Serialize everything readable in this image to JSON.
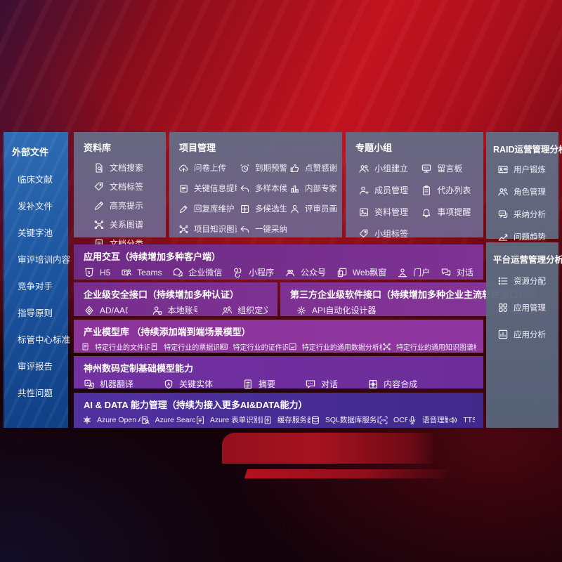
{
  "sidebar": {
    "title": "外部文件",
    "items": [
      "临床文献",
      "发补文件",
      "关键字池",
      "审评培训内容",
      "竞争对手",
      "指导原则",
      "标管中心标准",
      "审评报告",
      "共性问题"
    ]
  },
  "panels": {
    "library": {
      "title": "资料库",
      "items": [
        {
          "icon": "doc-search",
          "label": "文档搜索"
        },
        {
          "icon": "tag",
          "label": "文档标签"
        },
        {
          "icon": "highlight-pen",
          "label": "高亮提示"
        },
        {
          "icon": "graph",
          "label": "关系图谱"
        },
        {
          "icon": "doc",
          "label": "文档分类"
        }
      ]
    },
    "project": {
      "title": "项目管理",
      "items": [
        {
          "icon": "cloud-upload",
          "label": "问卷上传"
        },
        {
          "icon": "alarm",
          "label": "到期预警"
        },
        {
          "icon": "thumbs-up",
          "label": "点赞感谢"
        },
        {
          "icon": "doc-extract",
          "label": "关键信息提取"
        },
        {
          "icon": "reply-arrow",
          "label": "多样本候选"
        },
        {
          "icon": "ranking",
          "label": "内部专家排名"
        },
        {
          "icon": "pen-edit",
          "label": "回复库维护"
        },
        {
          "icon": "multi-gen",
          "label": "多候选生成"
        },
        {
          "icon": "person",
          "label": "评审员画像"
        },
        {
          "icon": "graph",
          "label": "项目知识图谱"
        },
        {
          "icon": "reply-arrow",
          "label": "一键采纳"
        }
      ]
    },
    "groups": {
      "title": "专题小组",
      "items": [
        {
          "icon": "people",
          "label": "小组建立"
        },
        {
          "icon": "bbs",
          "label": "留言板"
        },
        {
          "icon": "person-add",
          "label": "成员管理"
        },
        {
          "icon": "clipboard",
          "label": "代办列表"
        },
        {
          "icon": "photo",
          "label": "资料管理"
        },
        {
          "icon": "bell",
          "label": "事项提醒"
        },
        {
          "icon": "tag",
          "label": "小组标签"
        }
      ]
    },
    "raid": {
      "title": "RAID运营管理分析",
      "items": [
        {
          "icon": "idcard",
          "label": "用户锻炼"
        },
        {
          "icon": "people",
          "label": "角色管理"
        },
        {
          "icon": "qa-chat",
          "label": "采纳分析"
        },
        {
          "icon": "trend",
          "label": "问题趋势"
        }
      ]
    },
    "platform": {
      "title": "平台运营管理分析",
      "items": [
        {
          "icon": "list",
          "label": "资源分配"
        },
        {
          "icon": "apps",
          "label": "应用管理"
        },
        {
          "icon": "chart-analysis",
          "label": "应用分析"
        }
      ]
    }
  },
  "rows": {
    "interaction": {
      "title": "应用交互（持续增加多种客户端）",
      "items": [
        {
          "icon": "h5",
          "label": "H5"
        },
        {
          "icon": "teams",
          "label": "Teams"
        },
        {
          "icon": "wechat-work",
          "label": "企业微信"
        },
        {
          "icon": "miniapp",
          "label": "小程序"
        },
        {
          "icon": "accounts",
          "label": "公众号"
        },
        {
          "icon": "webwindow",
          "label": "Web飘窗"
        },
        {
          "icon": "portal",
          "label": "门户"
        },
        {
          "icon": "dialog",
          "label": "对话"
        }
      ]
    },
    "security": {
      "title": "企业级安全接口（持续增加多种认证）",
      "items": [
        {
          "icon": "shield-ad",
          "label": "AD/AAD"
        },
        {
          "icon": "account-local",
          "label": "本地账号"
        },
        {
          "icon": "org",
          "label": "组织定义"
        }
      ]
    },
    "thirdparty": {
      "title": "第三方企业级软件接口（持续增加多种企业主流软件接口）",
      "items": [
        {
          "icon": "api-gear",
          "label": "API自动化设计器"
        }
      ]
    },
    "models": {
      "title": "产业模型库 （持续添加端到端场景模型）",
      "items": [
        {
          "icon": "model-doc",
          "label": "特定行业的文件识别"
        },
        {
          "icon": "model-receipt",
          "label": "特定行业的票据识别"
        },
        {
          "icon": "model-idcard",
          "label": "特定行业的证件识别"
        },
        {
          "icon": "model-data",
          "label": "特定行业的通用数据分析模型"
        },
        {
          "icon": "graph",
          "label": "特定行业的通用知识图谱模型"
        }
      ]
    },
    "foundation": {
      "title": "神州数码定制基础模型能力",
      "items": [
        {
          "icon": "translate",
          "label": "机器翻译"
        },
        {
          "icon": "key-entity",
          "label": "关键实体"
        },
        {
          "icon": "summary",
          "label": "摘要"
        },
        {
          "icon": "chat",
          "label": "对话"
        },
        {
          "icon": "compose",
          "label": "内容合成"
        }
      ]
    },
    "aidata": {
      "title": "AI & DATA 能力管理（持续为接入更多AI&DATA能力）",
      "items": [
        {
          "icon": "openai",
          "label": "Azure Open AI"
        },
        {
          "icon": "azure-search",
          "label": "Azure Search"
        },
        {
          "icon": "form-recognizer",
          "label": "Azure 表单识别器"
        },
        {
          "icon": "cache-server",
          "label": "缓存服务器"
        },
        {
          "icon": "sql-db",
          "label": "SQL数据库服务器"
        },
        {
          "icon": "ocr",
          "label": "OCR"
        },
        {
          "icon": "speech",
          "label": "语音理解"
        },
        {
          "icon": "tts",
          "label": "TTS"
        }
      ]
    }
  },
  "colors": {
    "background_red": "#c3131f",
    "background_dark": "#16020a",
    "sidebar_blue": "#1d56a1",
    "panel_gray": "#646b83",
    "row_purple": "#7e3294",
    "row_magenta": "#8a3399",
    "row_violet": "#7230a0",
    "row_indigo": "#472c96",
    "text": "#ffffff"
  }
}
